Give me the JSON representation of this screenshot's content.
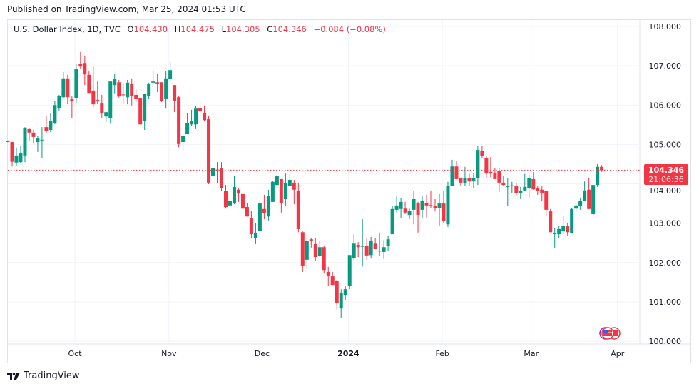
{
  "published": "Published on TradingView.com, Mar 25, 2024 01:53 UTC",
  "legend": {
    "symbol": "U.S. Dollar Index, 1D, TVC",
    "open_label": "O",
    "open": "104.430",
    "high_label": "H",
    "high": "104.475",
    "low_label": "L",
    "low": "104.305",
    "close_label": "C",
    "close": "104.346",
    "change": "−0.084 (−0.08%)"
  },
  "price_tag": {
    "price": "104.346",
    "countdown": "21:06:36"
  },
  "brand": "TradingView",
  "colors": {
    "up": "#089981",
    "down": "#f23645",
    "grid": "#f0f3fa",
    "border": "#e0e3eb"
  },
  "chart_data": {
    "type": "candlestick",
    "title": "U.S. Dollar Index, 1D, TVC",
    "ylim": [
      100,
      108
    ],
    "grid": true,
    "y_ticks": [
      "108.000",
      "107.000",
      "106.000",
      "105.000",
      "104.000",
      "103.000",
      "102.000",
      "101.000",
      "100.000"
    ],
    "y_tick_values": [
      108,
      107,
      106,
      105,
      104,
      103,
      102,
      101,
      100
    ],
    "x_ticks": [
      {
        "label": "Oct",
        "index": 15.7
      },
      {
        "label": "Nov",
        "index": 37.7
      },
      {
        "label": "Dec",
        "index": 59.5
      },
      {
        "label": "2024",
        "index": 79.7,
        "bold": true
      },
      {
        "label": "Feb",
        "index": 101.7
      },
      {
        "label": "Mar",
        "index": 122.5
      },
      {
        "label": "Apr",
        "index": 142.7
      }
    ],
    "last_price": 104.346,
    "ohlc_fields": [
      "open",
      "high",
      "low",
      "close"
    ],
    "candles": [
      [
        105.07,
        105.1,
        105.06,
        105.08
      ],
      [
        105.06,
        105.06,
        104.44,
        104.56
      ],
      [
        104.54,
        104.92,
        104.46,
        104.72
      ],
      [
        104.55,
        104.97,
        104.52,
        104.77
      ],
      [
        104.72,
        105.44,
        104.55,
        105.41
      ],
      [
        105.39,
        105.42,
        105.08,
        105.3
      ],
      [
        105.3,
        105.37,
        105.02,
        105.19
      ],
      [
        105.06,
        105.21,
        104.81,
        105.15
      ],
      [
        105.11,
        105.44,
        104.66,
        105.12
      ],
      [
        105.44,
        105.73,
        105.28,
        105.35
      ],
      [
        105.37,
        105.79,
        105.31,
        105.59
      ],
      [
        105.55,
        106.1,
        105.51,
        106.0
      ],
      [
        105.93,
        106.26,
        105.86,
        106.24
      ],
      [
        106.2,
        106.84,
        106.17,
        106.68
      ],
      [
        106.68,
        106.77,
        106.02,
        106.2
      ],
      [
        106.15,
        106.24,
        105.66,
        106.11
      ],
      [
        106.17,
        107.04,
        106.04,
        106.91
      ],
      [
        107.04,
        107.35,
        106.91,
        106.98
      ],
      [
        107.07,
        107.26,
        106.51,
        106.78
      ],
      [
        106.77,
        106.86,
        106.31,
        106.31
      ],
      [
        106.37,
        106.98,
        105.95,
        106.02
      ],
      [
        106.13,
        106.6,
        106.02,
        106.11
      ],
      [
        106.04,
        106.26,
        105.66,
        105.8
      ],
      [
        105.71,
        105.82,
        105.57,
        105.82
      ],
      [
        105.66,
        106.6,
        105.53,
        106.6
      ],
      [
        106.51,
        106.79,
        106.3,
        106.66
      ],
      [
        106.58,
        106.64,
        106.19,
        106.22
      ],
      [
        106.27,
        106.53,
        106.02,
        106.25
      ],
      [
        106.2,
        106.64,
        106.02,
        106.57
      ],
      [
        106.55,
        106.68,
        105.99,
        106.24
      ],
      [
        106.26,
        106.42,
        106.08,
        106.15
      ],
      [
        106.17,
        106.17,
        105.51,
        105.51
      ],
      [
        105.6,
        106.28,
        105.37,
        106.28
      ],
      [
        106.24,
        106.57,
        106.15,
        106.53
      ],
      [
        106.57,
        106.89,
        106.53,
        106.6
      ],
      [
        106.58,
        106.8,
        106.33,
        106.55
      ],
      [
        106.58,
        106.58,
        106.08,
        106.11
      ],
      [
        106.15,
        106.86,
        105.91,
        106.68
      ],
      [
        106.66,
        107.13,
        106.62,
        106.89
      ],
      [
        106.51,
        106.51,
        105.82,
        106.11
      ],
      [
        106.2,
        106.22,
        104.93,
        105.01
      ],
      [
        105.06,
        105.3,
        104.84,
        105.22
      ],
      [
        105.26,
        105.79,
        105.26,
        105.55
      ],
      [
        105.51,
        105.88,
        105.46,
        105.59
      ],
      [
        105.51,
        105.97,
        105.39,
        105.91
      ],
      [
        105.93,
        106.0,
        105.75,
        105.84
      ],
      [
        105.8,
        105.97,
        105.59,
        105.62
      ],
      [
        105.64,
        105.73,
        103.99,
        104.03
      ],
      [
        104.19,
        104.52,
        103.97,
        104.39
      ],
      [
        104.36,
        104.55,
        104.01,
        104.35
      ],
      [
        104.39,
        104.55,
        103.81,
        103.9
      ],
      [
        103.81,
        103.97,
        103.37,
        103.41
      ],
      [
        103.45,
        103.7,
        103.17,
        103.56
      ],
      [
        103.52,
        104.21,
        103.48,
        103.92
      ],
      [
        103.85,
        103.88,
        103.54,
        103.75
      ],
      [
        103.74,
        103.85,
        103.36,
        103.37
      ],
      [
        103.41,
        103.52,
        103.17,
        103.17
      ],
      [
        103.12,
        103.32,
        102.61,
        102.72
      ],
      [
        102.63,
        103.01,
        102.47,
        102.76
      ],
      [
        102.81,
        103.59,
        102.72,
        103.5
      ],
      [
        103.36,
        103.72,
        103.1,
        103.25
      ],
      [
        103.17,
        103.85,
        103.07,
        103.7
      ],
      [
        103.54,
        104.08,
        103.54,
        104.05
      ],
      [
        103.97,
        104.23,
        103.86,
        104.19
      ],
      [
        104.12,
        104.12,
        103.27,
        103.52
      ],
      [
        103.61,
        104.26,
        103.43,
        104.01
      ],
      [
        103.95,
        104.26,
        103.94,
        104.1
      ],
      [
        104.03,
        104.1,
        103.48,
        103.85
      ],
      [
        103.83,
        104.03,
        102.77,
        102.85
      ],
      [
        102.77,
        102.79,
        101.76,
        101.92
      ],
      [
        102.07,
        102.63,
        101.83,
        102.54
      ],
      [
        102.59,
        102.63,
        102.38,
        102.54
      ],
      [
        102.47,
        102.63,
        102.05,
        102.14
      ],
      [
        102.16,
        102.54,
        102.14,
        102.39
      ],
      [
        102.39,
        102.43,
        101.72,
        101.81
      ],
      [
        101.76,
        101.89,
        101.41,
        101.67
      ],
      [
        101.65,
        101.76,
        101.43,
        101.43
      ],
      [
        101.54,
        101.56,
        100.81,
        100.96
      ],
      [
        100.83,
        101.32,
        100.6,
        101.23
      ],
      [
        101.16,
        101.41,
        101.05,
        101.32
      ],
      [
        101.4,
        102.19,
        101.32,
        102.19
      ],
      [
        102.12,
        102.72,
        102.07,
        102.48
      ],
      [
        102.45,
        102.52,
        102.14,
        102.39
      ],
      [
        102.41,
        103.1,
        101.9,
        102.42
      ],
      [
        102.43,
        102.61,
        102.07,
        102.18
      ],
      [
        102.19,
        102.65,
        102.1,
        102.56
      ],
      [
        102.48,
        102.63,
        102.34,
        102.34
      ],
      [
        102.3,
        102.76,
        102.16,
        102.28
      ],
      [
        102.27,
        102.57,
        102.09,
        102.39
      ],
      [
        102.43,
        102.67,
        102.3,
        102.59
      ],
      [
        102.72,
        103.43,
        102.72,
        103.36
      ],
      [
        103.34,
        103.68,
        103.27,
        103.45
      ],
      [
        103.36,
        103.63,
        103.14,
        103.54
      ],
      [
        103.37,
        103.54,
        103.23,
        103.27
      ],
      [
        103.21,
        103.37,
        103.1,
        103.32
      ],
      [
        103.34,
        103.81,
        102.97,
        103.61
      ],
      [
        103.5,
        103.54,
        102.76,
        103.21
      ],
      [
        103.34,
        103.68,
        103.12,
        103.57
      ],
      [
        103.52,
        103.72,
        103.14,
        103.45
      ],
      [
        103.46,
        103.83,
        103.39,
        103.45
      ],
      [
        103.43,
        103.61,
        103.3,
        103.39
      ],
      [
        103.39,
        103.74,
        102.94,
        103.5
      ],
      [
        103.5,
        103.81,
        103.01,
        103.05
      ],
      [
        102.97,
        104.05,
        102.9,
        103.95
      ],
      [
        103.94,
        104.61,
        103.94,
        104.44
      ],
      [
        104.44,
        104.59,
        104.12,
        104.12
      ],
      [
        104.15,
        104.15,
        103.94,
        104.03
      ],
      [
        104.01,
        104.43,
        103.95,
        104.14
      ],
      [
        104.14,
        104.26,
        103.95,
        104.06
      ],
      [
        104.06,
        104.26,
        103.9,
        104.14
      ],
      [
        104.15,
        104.97,
        103.97,
        104.86
      ],
      [
        104.84,
        104.97,
        104.66,
        104.7
      ],
      [
        104.66,
        104.7,
        104.17,
        104.26
      ],
      [
        104.3,
        104.68,
        104.17,
        104.26
      ],
      [
        104.28,
        104.39,
        104.12,
        104.12
      ],
      [
        104.32,
        104.41,
        103.79,
        104.03
      ],
      [
        104.03,
        104.21,
        103.94,
        103.97
      ],
      [
        103.92,
        104.14,
        103.43,
        103.94
      ],
      [
        103.95,
        104.05,
        103.77,
        103.96
      ],
      [
        103.95,
        104.01,
        103.7,
        103.76
      ],
      [
        103.76,
        103.92,
        103.61,
        103.81
      ],
      [
        103.83,
        104.25,
        103.81,
        103.92
      ],
      [
        103.9,
        104.23,
        103.65,
        104.14
      ],
      [
        104.12,
        104.3,
        103.85,
        103.86
      ],
      [
        103.88,
        103.95,
        103.72,
        103.81
      ],
      [
        103.85,
        103.95,
        103.57,
        103.76
      ],
      [
        103.81,
        103.81,
        103.19,
        103.34
      ],
      [
        103.3,
        103.36,
        102.77,
        102.77
      ],
      [
        102.73,
        102.88,
        102.36,
        102.74
      ],
      [
        102.72,
        102.92,
        102.63,
        102.85
      ],
      [
        102.79,
        103.17,
        102.72,
        102.92
      ],
      [
        102.92,
        103.01,
        102.67,
        102.77
      ],
      [
        102.74,
        103.39,
        102.74,
        103.36
      ],
      [
        103.37,
        103.48,
        103.3,
        103.45
      ],
      [
        103.43,
        103.65,
        103.34,
        103.57
      ],
      [
        103.57,
        104.06,
        103.57,
        103.83
      ],
      [
        103.85,
        104.15,
        103.36,
        103.36
      ],
      [
        103.23,
        103.97,
        103.17,
        103.97
      ],
      [
        103.97,
        104.5,
        103.92,
        104.43
      ],
      [
        104.43,
        104.475,
        104.305,
        104.346
      ]
    ]
  }
}
